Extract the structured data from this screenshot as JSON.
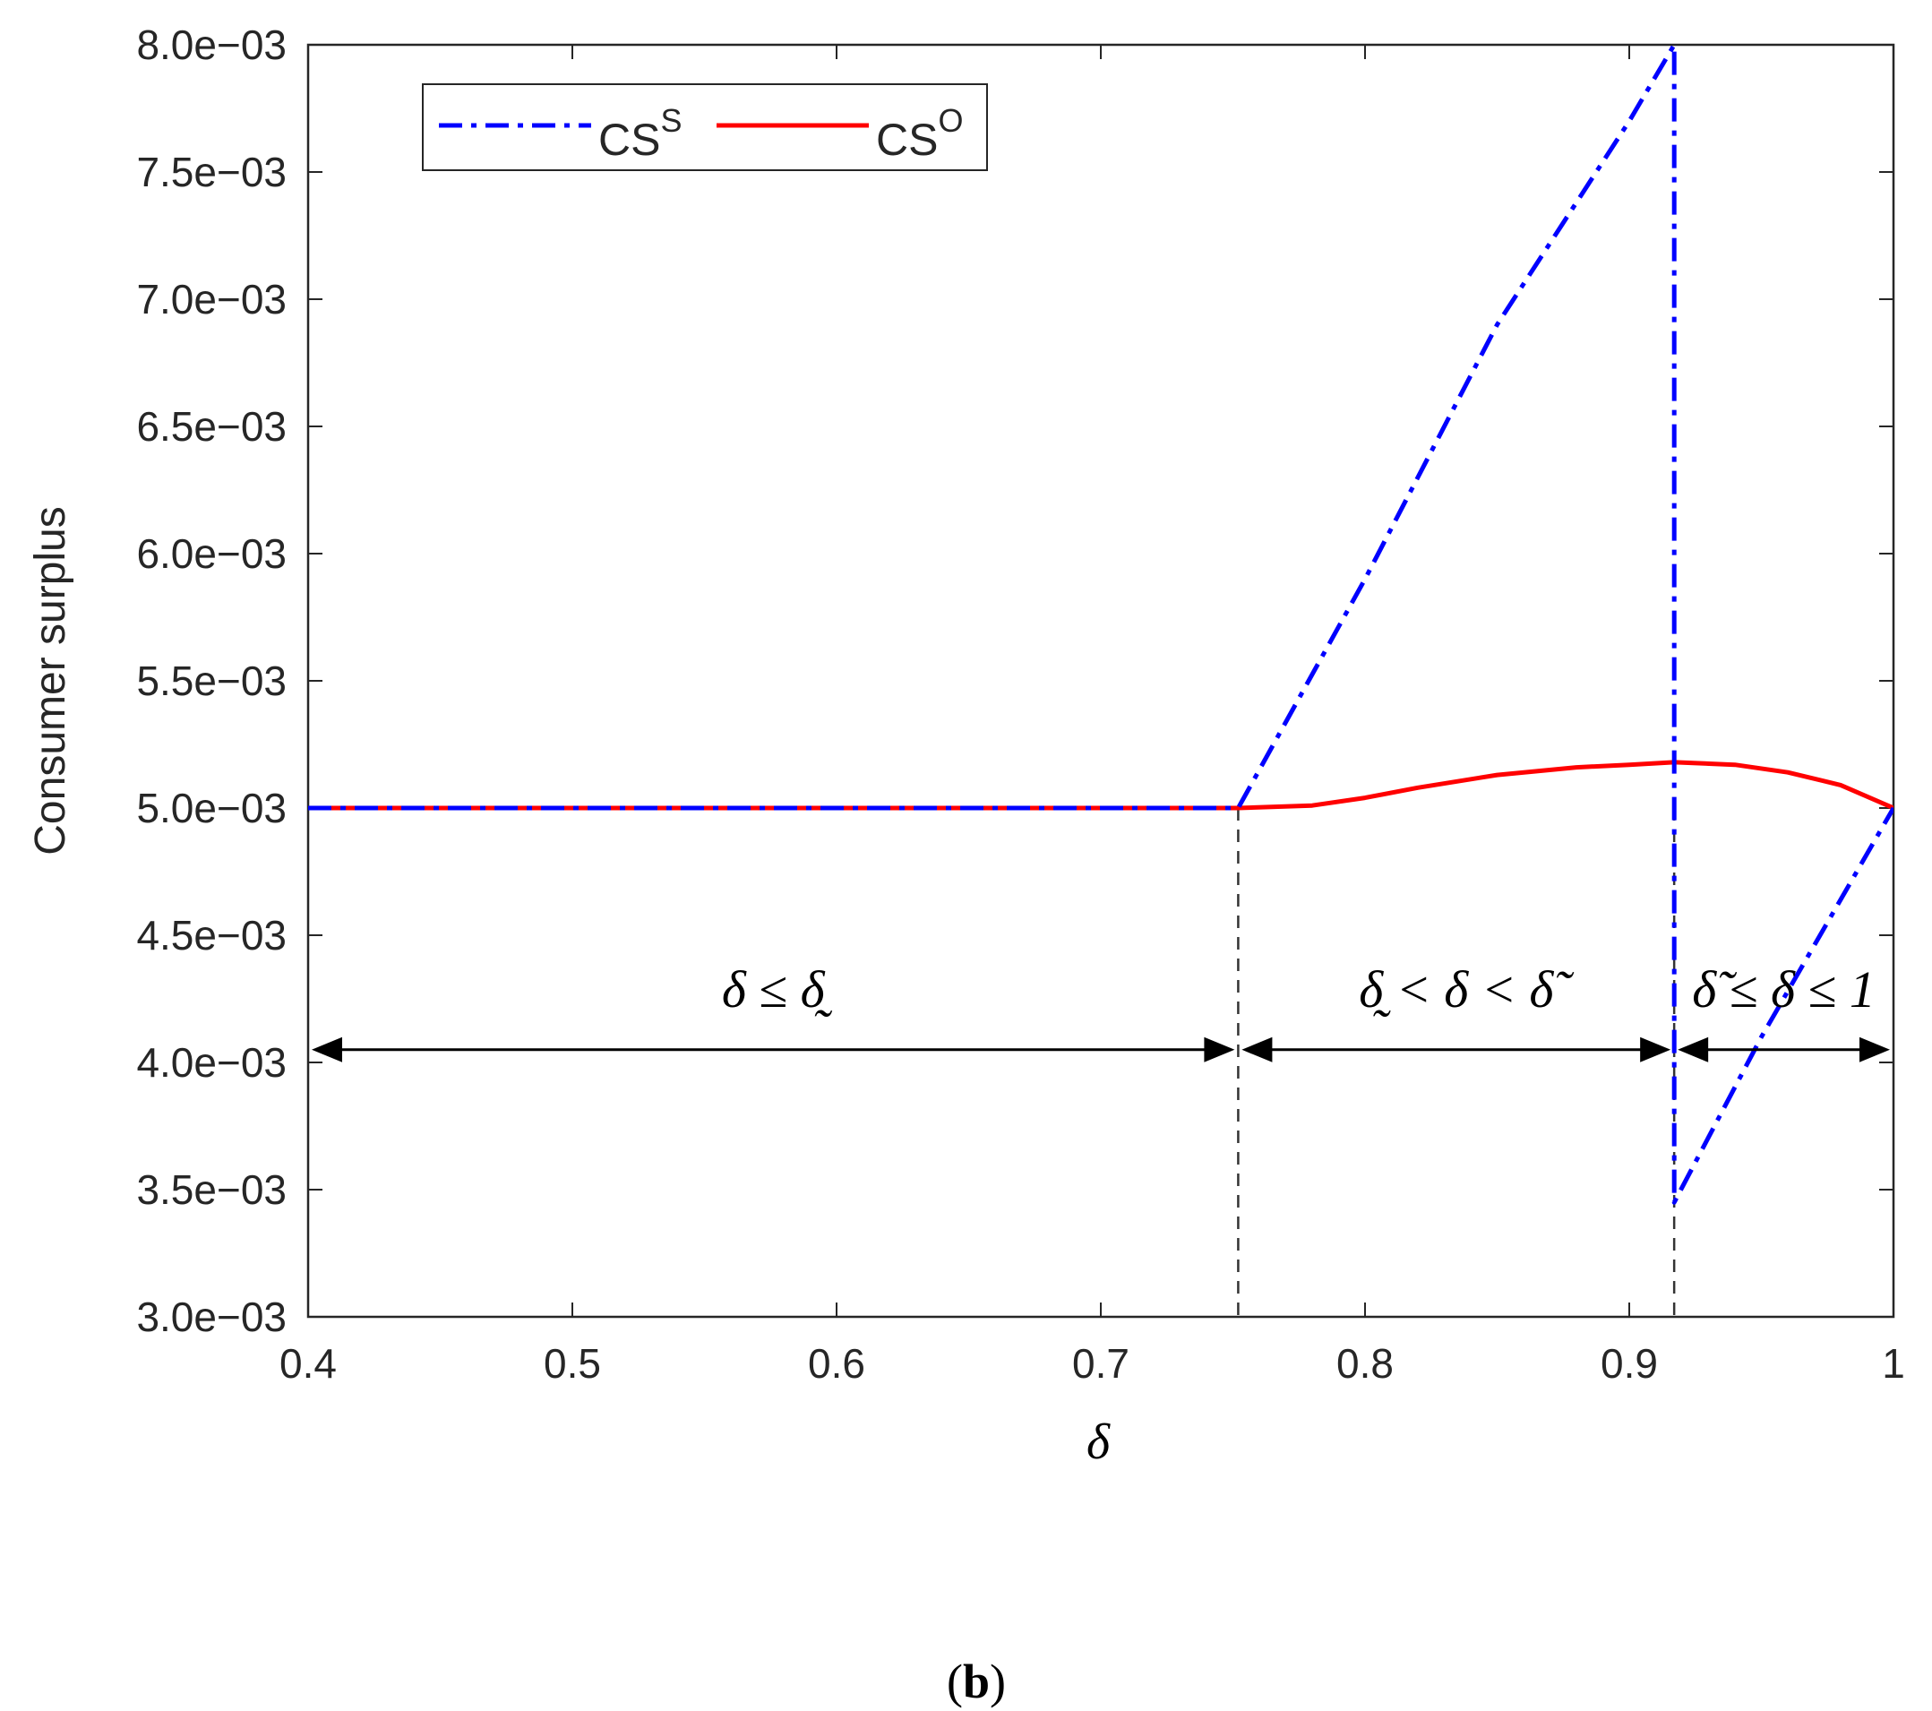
{
  "chart_data": {
    "type": "line",
    "xlabel": "δ",
    "ylabel": "Consumer surplus",
    "xlim": [
      0.4,
      1.0
    ],
    "ylim": [
      0.003,
      0.008
    ],
    "x_ticks": [
      0.4,
      0.5,
      0.6,
      0.7,
      0.8,
      0.9,
      1.0
    ],
    "x_tick_labels": [
      "0.4",
      "0.5",
      "0.6",
      "0.7",
      "0.8",
      "0.9",
      "1"
    ],
    "y_ticks": [
      0.003,
      0.0035,
      0.004,
      0.0045,
      0.005,
      0.0055,
      0.006,
      0.0065,
      0.007,
      0.0075,
      0.008
    ],
    "y_tick_labels": [
      "3.0e−03",
      "3.5e−03",
      "4.0e−03",
      "4.5e−03",
      "5.0e−03",
      "5.5e−03",
      "6.0e−03",
      "6.5e−03",
      "7.0e−03",
      "7.5e−03",
      "8.0e−03"
    ],
    "grid": false,
    "legend_position": "top-left",
    "series": [
      {
        "name": "CS",
        "superscript": "S",
        "color": "#0000ff",
        "style": "dash-dot",
        "x": [
          0.4,
          0.5,
          0.6,
          0.7,
          0.752,
          0.752,
          0.8,
          0.85,
          0.9,
          0.917,
          0.917,
          0.95,
          1.0
        ],
        "y": [
          0.005,
          0.005,
          0.005,
          0.005,
          0.005,
          0.005,
          0.0059,
          0.0069,
          0.0077,
          0.008,
          0.00345,
          0.0041,
          0.005
        ]
      },
      {
        "name": "CS",
        "superscript": "O",
        "color": "#ff0000",
        "style": "solid",
        "x": [
          0.4,
          0.5,
          0.6,
          0.7,
          0.752,
          0.78,
          0.8,
          0.82,
          0.85,
          0.88,
          0.9,
          0.917,
          0.94,
          0.96,
          0.98,
          1.0
        ],
        "y": [
          0.005,
          0.005,
          0.005,
          0.005,
          0.005,
          0.00501,
          0.00504,
          0.00508,
          0.00513,
          0.00516,
          0.00517,
          0.00518,
          0.00517,
          0.00514,
          0.00509,
          0.005
        ]
      }
    ],
    "thresholds": [
      0.752,
      0.917
    ],
    "regions": [
      {
        "from": 0.4,
        "to": 0.752,
        "label": "δ ≤ δ̰"
      },
      {
        "from": 0.752,
        "to": 0.917,
        "label": "δ̰ < δ < δ̃"
      },
      {
        "from": 0.917,
        "to": 1.0,
        "label": "δ̃ ≤ δ ≤ 1"
      }
    ],
    "region_arrow_y": 0.00405
  },
  "legend": {
    "entry_s_base": "CS",
    "entry_s_sup": "S",
    "entry_o_base": "CS",
    "entry_o_sup": "O"
  },
  "caption": {
    "open": "(",
    "letter": "b",
    "close": ")"
  }
}
